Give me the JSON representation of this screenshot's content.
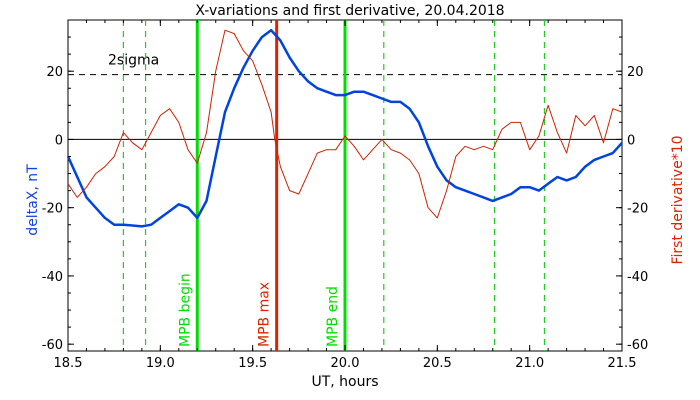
{
  "chart_data": {
    "type": "line",
    "title": "X-variations and first derivative, 20.04.2018",
    "xlabel": "UT, hours",
    "ylabel_left": "deltaX, nT",
    "ylabel_right": "First derivative*10",
    "xlim": [
      18.5,
      21.5
    ],
    "ylim": [
      -62,
      35
    ],
    "x_ticks": [
      "18.5",
      "19.0",
      "19.5",
      "20.0",
      "20.5",
      "21.0",
      "21.5"
    ],
    "x_tick_values": [
      18.5,
      19.0,
      19.5,
      20.0,
      20.5,
      21.0,
      21.5
    ],
    "y_ticks": [
      "20",
      "0",
      "-20",
      "-40",
      "-60"
    ],
    "y_tick_values": [
      20,
      0,
      -20,
      -40,
      -60
    ],
    "sigma_label": "2sigma",
    "sigma_level": 19,
    "zero_line": 0,
    "vertical_markers": [
      {
        "label": "MPB begin",
        "x": 19.2,
        "color": "#00dd00"
      },
      {
        "label": "MPB max",
        "x": 19.63,
        "color": "#dd2200"
      },
      {
        "label": "MPB end",
        "x": 20.0,
        "color": "#00dd00"
      }
    ],
    "dashed_markers": [
      18.8,
      18.92,
      20.21,
      20.81,
      21.08
    ],
    "series": [
      {
        "color": "#0044dd",
        "x": [
          18.5,
          18.6,
          18.7,
          18.75,
          18.8,
          18.9,
          18.95,
          19.0,
          19.05,
          19.1,
          19.15,
          19.2,
          19.25,
          19.3,
          19.35,
          19.4,
          19.45,
          19.5,
          19.55,
          19.6,
          19.65,
          19.7,
          19.75,
          19.8,
          19.85,
          19.9,
          19.95,
          20.0,
          20.05,
          20.1,
          20.15,
          20.2,
          20.25,
          20.3,
          20.35,
          20.4,
          20.45,
          20.5,
          20.55,
          20.6,
          20.65,
          20.7,
          20.75,
          20.8,
          20.85,
          20.9,
          20.95,
          21.0,
          21.05,
          21.1,
          21.15,
          21.2,
          21.25,
          21.3,
          21.35,
          21.4,
          21.45,
          21.5
        ],
        "y": [
          -5,
          -17,
          -23,
          -25,
          -25,
          -25.5,
          -25,
          -23,
          -21,
          -19,
          -20,
          -23,
          -18,
          -5,
          8,
          15,
          21,
          26,
          30,
          32,
          29,
          24,
          20,
          17,
          15,
          14,
          13,
          13,
          14,
          14,
          13,
          12,
          11,
          11,
          9,
          5,
          -2,
          -8,
          -12,
          -14,
          -15,
          -16,
          -17,
          -18,
          -17,
          -16,
          -14,
          -14,
          -15,
          -13,
          -11,
          -12,
          -11,
          -8,
          -6,
          -5,
          -4,
          -1
        ]
      },
      {
        "color": "#cc2200",
        "x": [
          18.5,
          18.55,
          18.6,
          18.65,
          18.7,
          18.75,
          18.8,
          18.85,
          18.9,
          18.95,
          19.0,
          19.05,
          19.1,
          19.15,
          19.2,
          19.25,
          19.3,
          19.35,
          19.4,
          19.45,
          19.5,
          19.55,
          19.6,
          19.62,
          19.65,
          19.7,
          19.75,
          19.8,
          19.85,
          19.9,
          19.95,
          20.0,
          20.05,
          20.1,
          20.15,
          20.2,
          20.25,
          20.3,
          20.35,
          20.4,
          20.45,
          20.5,
          20.55,
          20.6,
          20.65,
          20.7,
          20.75,
          20.8,
          20.85,
          20.9,
          20.95,
          21.0,
          21.05,
          21.1,
          21.15,
          21.2,
          21.25,
          21.3,
          21.35,
          21.4,
          21.45,
          21.5
        ],
        "y": [
          -13,
          -17,
          -14,
          -10,
          -8,
          -5,
          2,
          -1,
          -3,
          2,
          7,
          9,
          5,
          -3,
          -7,
          2,
          20,
          32,
          31,
          26,
          23,
          16,
          8,
          0,
          -8,
          -15,
          -16,
          -10,
          -4,
          -3,
          -3,
          1,
          -2,
          -6,
          -3,
          0,
          -3,
          -4,
          -6,
          -10,
          -20,
          -23,
          -15,
          -5,
          -2,
          -3,
          -2,
          -3,
          3,
          5,
          5,
          -3,
          1,
          10,
          2,
          -4,
          7,
          4,
          7,
          -1,
          9,
          8
        ]
      }
    ]
  }
}
